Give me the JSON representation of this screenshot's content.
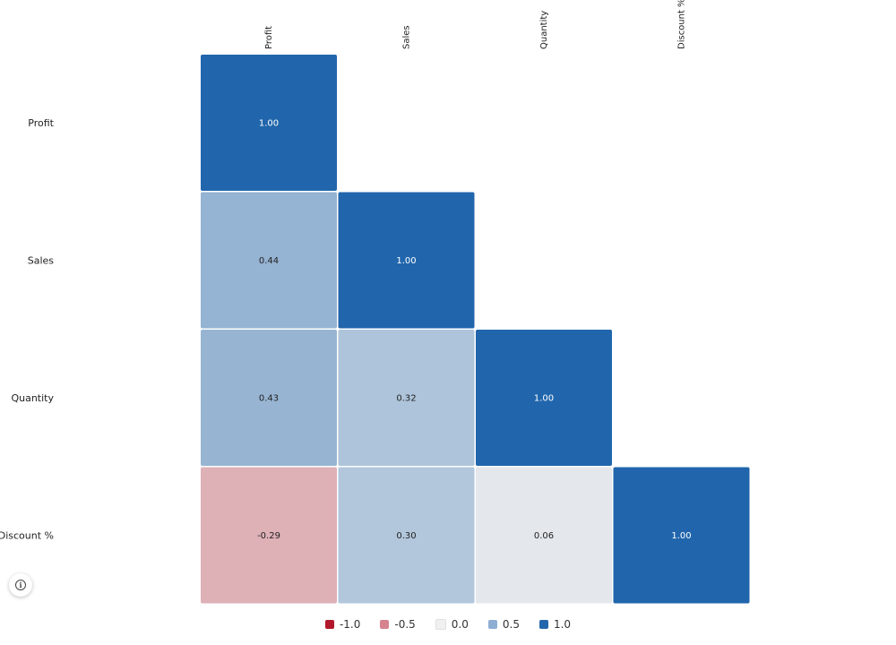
{
  "chart_data": {
    "type": "heatmap",
    "title": "",
    "xlabel": "",
    "ylabel": "",
    "rows": [
      "Profit",
      "Sales",
      "Quantity",
      "Discount %"
    ],
    "columns": [
      "Profit",
      "Sales",
      "Quantity",
      "Discount %"
    ],
    "cells": [
      {
        "row": "Profit",
        "col": "Profit",
        "value": 1.0,
        "label": "1.00"
      },
      {
        "row": "Sales",
        "col": "Profit",
        "value": 0.44,
        "label": "0.44"
      },
      {
        "row": "Sales",
        "col": "Sales",
        "value": 1.0,
        "label": "1.00"
      },
      {
        "row": "Quantity",
        "col": "Profit",
        "value": 0.43,
        "label": "0.43"
      },
      {
        "row": "Quantity",
        "col": "Sales",
        "value": 0.32,
        "label": "0.32"
      },
      {
        "row": "Quantity",
        "col": "Quantity",
        "value": 1.0,
        "label": "1.00"
      },
      {
        "row": "Discount %",
        "col": "Profit",
        "value": -0.29,
        "label": "-0.29"
      },
      {
        "row": "Discount %",
        "col": "Sales",
        "value": 0.3,
        "label": "0.30"
      },
      {
        "row": "Discount %",
        "col": "Quantity",
        "value": 0.06,
        "label": "0.06"
      },
      {
        "row": "Discount %",
        "col": "Discount %",
        "value": 1.0,
        "label": "1.00"
      }
    ],
    "color_scale": {
      "min": -1.0,
      "max": 1.0,
      "negative_color": "#b2182b",
      "neutral_color": "#f0f0f0",
      "positive_color": "#2166ac"
    },
    "legend": {
      "placement": "bottom-center",
      "items": [
        {
          "label": "-1.0",
          "color": "#b2182b"
        },
        {
          "label": "-0.5",
          "color": "#d6838f"
        },
        {
          "label": "0.0",
          "color": "#f0f0f0"
        },
        {
          "label": "0.5",
          "color": "#8faed3"
        },
        {
          "label": "1.0",
          "color": "#2166ac"
        }
      ]
    }
  },
  "info_button": {
    "icon": "info-icon"
  }
}
